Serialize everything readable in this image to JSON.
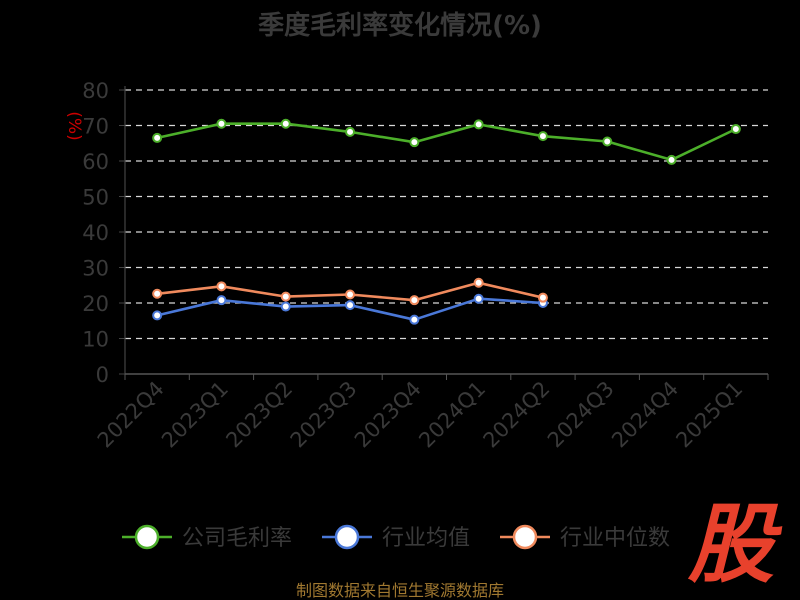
{
  "chart_data": {
    "type": "line",
    "title": "季度毛利率变化情况(%)",
    "ylabel": "(%)",
    "xlabel": "",
    "categories": [
      "2022Q4",
      "2023Q1",
      "2023Q2",
      "2023Q3",
      "2023Q4",
      "2024Q1",
      "2024Q2",
      "2024Q3",
      "2024Q4",
      "2025Q1"
    ],
    "ylim": [
      0,
      80
    ],
    "yticks": [
      0,
      10,
      20,
      30,
      40,
      50,
      60,
      70,
      80
    ],
    "grid": true,
    "legend_position": "bottom",
    "series": [
      {
        "name": "公司毛利率",
        "color": "#4caf2a",
        "values": [
          66.5,
          70.5,
          70.5,
          68.2,
          65.3,
          70.3,
          67.0,
          65.5,
          60.3,
          69.0
        ]
      },
      {
        "name": "行业均值",
        "color": "#4a78d8",
        "values": [
          16.5,
          20.8,
          19.0,
          19.4,
          15.3,
          21.2,
          20.0,
          null,
          null,
          null
        ]
      },
      {
        "name": "行业中位数",
        "color": "#f08a5d",
        "values": [
          22.6,
          24.7,
          21.8,
          22.4,
          20.8,
          25.7,
          21.5,
          null,
          null,
          null
        ]
      }
    ]
  },
  "source_note": "制图数据来自恒生聚源数据库",
  "watermark": "股"
}
